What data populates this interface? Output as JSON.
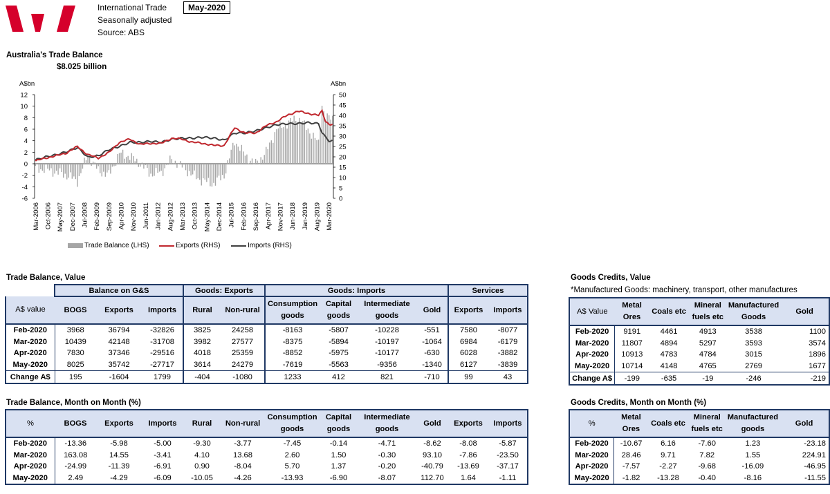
{
  "header": {
    "line1": "International Trade",
    "line2": "Seasonally adjusted",
    "line3": "Source: ABS",
    "period": "May-2020"
  },
  "chart_title": "Australia's Trade Balance",
  "chart_subtitle": "$8.025 billion",
  "chart_data": {
    "type": "bar+line",
    "left_axis": {
      "label": "A$bn",
      "min": -6,
      "max": 12,
      "ticks": [
        -6,
        -4,
        -2,
        0,
        2,
        4,
        6,
        8,
        10,
        12
      ]
    },
    "right_axis": {
      "label": "A$bn",
      "min": 0,
      "max": 50,
      "ticks": [
        0,
        5,
        10,
        15,
        20,
        25,
        30,
        35,
        40,
        45,
        50
      ]
    },
    "x_tick_labels": [
      "Mar-2006",
      "Oct-2006",
      "May-2007",
      "Dec-2007",
      "Jul-2008",
      "Feb-2009",
      "Sep-2009",
      "Apr-2010",
      "Nov-2010",
      "Jun-2011",
      "Jan-2012",
      "Aug-2012",
      "Mar-2013",
      "Oct-2013",
      "May-2014",
      "Dec-2014",
      "Jul-2015",
      "Feb-2016",
      "Sep-2016",
      "Apr-2017",
      "Nov-2017",
      "Jun-2018",
      "Jan-2019",
      "Aug-2019",
      "Mar-2020"
    ],
    "legend": [
      "Trade Balance (LHS)",
      "Exports (RHS)",
      "Imports (RHS)"
    ],
    "series_colors": {
      "balance": "#a6a6a6",
      "exports": "#c0272d",
      "imports": "#3f3f3f"
    },
    "anchors": {
      "months": [
        0,
        6,
        12,
        18,
        24,
        30,
        36,
        42,
        48,
        54,
        60,
        66,
        72,
        78,
        84,
        90,
        96,
        102,
        108,
        114,
        120,
        126,
        132,
        138,
        144,
        150,
        156,
        162,
        164,
        166,
        168
      ],
      "balance": [
        -0.8,
        -1.0,
        -1.5,
        -2.0,
        -3.0,
        1.5,
        -1.2,
        -2.0,
        1.8,
        1.3,
        0.0,
        -1.8,
        -1.5,
        0.8,
        -0.5,
        -2.0,
        -3.0,
        -3.5,
        -2.0,
        4.0,
        1.5,
        0.0,
        2.0,
        6.0,
        7.0,
        8.0,
        6.0,
        3.5,
        10.4,
        7.8,
        8.0
      ],
      "exports": [
        18.0,
        19.5,
        20.5,
        22.0,
        25.0,
        21.0,
        19.5,
        22.0,
        27.0,
        28.5,
        26.0,
        26.5,
        26.5,
        29.0,
        28.5,
        27.0,
        26.5,
        25.5,
        25.5,
        34.0,
        31.5,
        31.5,
        35.0,
        37.0,
        40.0,
        42.0,
        41.0,
        40.0,
        42.1,
        37.3,
        35.7
      ],
      "imports": [
        18.5,
        20.0,
        21.0,
        22.5,
        24.5,
        19.8,
        20.5,
        23.5,
        25.0,
        27.0,
        27.0,
        27.5,
        27.0,
        28.5,
        29.0,
        29.0,
        29.5,
        29.0,
        28.0,
        31.5,
        31.5,
        32.5,
        34.0,
        35.5,
        36.0,
        36.0,
        36.5,
        36.0,
        31.7,
        29.5,
        27.7
      ]
    }
  },
  "trade_value": {
    "title": "Trade Balance, Value",
    "groups": [
      "Balance on G&S",
      "Goods: Exports",
      "Goods: Imports",
      "Services"
    ],
    "headers": [
      {
        "l1": "A$ value",
        "l2": ""
      },
      {
        "l1": "BOGS",
        "l2": ""
      },
      {
        "l1": "Exports",
        "l2": ""
      },
      {
        "l1": "Imports",
        "l2": ""
      },
      {
        "l1": "Rural",
        "l2": ""
      },
      {
        "l1": "Non-rural",
        "l2": ""
      },
      {
        "l1": "Consumption",
        "l2": "goods"
      },
      {
        "l1": "Capital",
        "l2": "goods"
      },
      {
        "l1": "Intermediate",
        "l2": "goods"
      },
      {
        "l1": "Gold",
        "l2": ""
      },
      {
        "l1": "Exports",
        "l2": ""
      },
      {
        "l1": "Imports",
        "l2": ""
      }
    ],
    "rows": [
      [
        "Feb-2020",
        "3968",
        "36794",
        "-32826",
        "3825",
        "24258",
        "-8163",
        "-5807",
        "-10228",
        "-551",
        "7580",
        "-8077"
      ],
      [
        "Mar-2020",
        "10439",
        "42148",
        "-31708",
        "3982",
        "27577",
        "-8375",
        "-5894",
        "-10197",
        "-1064",
        "6984",
        "-6179"
      ],
      [
        "Apr-2020",
        "7830",
        "37346",
        "-29516",
        "4018",
        "25359",
        "-8852",
        "-5975",
        "-10177",
        "-630",
        "6028",
        "-3882"
      ],
      [
        "May-2020",
        "8025",
        "35742",
        "-27717",
        "3614",
        "24279",
        "-7619",
        "-5563",
        "-9356",
        "-1340",
        "6127",
        "-3839"
      ],
      [
        "Change A$",
        "195",
        "-1604",
        "1799",
        "-404",
        "-1080",
        "1233",
        "412",
        "821",
        "-710",
        "99",
        "43"
      ]
    ]
  },
  "trade_mom": {
    "title": "Trade Balance, Month on Month (%)",
    "headers": [
      {
        "l1": "%",
        "l2": ""
      },
      {
        "l1": "BOGS",
        "l2": ""
      },
      {
        "l1": "Exports",
        "l2": ""
      },
      {
        "l1": "Imports",
        "l2": ""
      },
      {
        "l1": "Rural",
        "l2": ""
      },
      {
        "l1": "Non-rural",
        "l2": ""
      },
      {
        "l1": "Consumption",
        "l2": "goods"
      },
      {
        "l1": "Capital",
        "l2": "goods"
      },
      {
        "l1": "Intermediate",
        "l2": "goods"
      },
      {
        "l1": "Gold",
        "l2": ""
      },
      {
        "l1": "Exports",
        "l2": ""
      },
      {
        "l1": "Imports",
        "l2": ""
      }
    ],
    "rows": [
      [
        "Feb-2020",
        "-13.36",
        "-5.98",
        "-5.00",
        "-9.30",
        "-3.77",
        "-7.45",
        "-0.14",
        "-4.71",
        "-8.62",
        "-8.08",
        "-5.87"
      ],
      [
        "Mar-2020",
        "163.08",
        "14.55",
        "-3.41",
        "4.10",
        "13.68",
        "2.60",
        "1.50",
        "-0.30",
        "93.10",
        "-7.86",
        "-23.50"
      ],
      [
        "Apr-2020",
        "-24.99",
        "-11.39",
        "-6.91",
        "0.90",
        "-8.04",
        "5.70",
        "1.37",
        "-0.20",
        "-40.79",
        "-13.69",
        "-37.17"
      ],
      [
        "May-2020",
        "2.49",
        "-4.29",
        "-6.09",
        "-10.05",
        "-4.26",
        "-13.93",
        "-6.90",
        "-8.07",
        "112.70",
        "1.64",
        "-1.11"
      ]
    ]
  },
  "goods_value": {
    "title": "Goods Credits, Value",
    "note": "*Manufactured Goods: machinery, transport, other manufactures",
    "headers": [
      {
        "l1": "A$ Value",
        "l2": ""
      },
      {
        "l1": "Metal",
        "l2": "Ores"
      },
      {
        "l1": "Coals etc",
        "l2": ""
      },
      {
        "l1": "Mineral",
        "l2": "fuels etc"
      },
      {
        "l1": "Manufactured",
        "l2": "Goods"
      },
      {
        "l1": "Gold",
        "l2": ""
      }
    ],
    "rows": [
      [
        "Feb-2020",
        "9191",
        "4461",
        "4913",
        "3538",
        "1100"
      ],
      [
        "Mar-2020",
        "11807",
        "4894",
        "5297",
        "3593",
        "3574"
      ],
      [
        "Apr-2020",
        "10913",
        "4783",
        "4784",
        "3015",
        "1896"
      ],
      [
        "May-2020",
        "10714",
        "4148",
        "4765",
        "2769",
        "1677"
      ],
      [
        "Change A$",
        "-199",
        "-635",
        "-19",
        "-246",
        "-219"
      ]
    ]
  },
  "goods_mom": {
    "title": "Goods Credits, Month on Month (%)",
    "headers": [
      {
        "l1": "%",
        "l2": ""
      },
      {
        "l1": "Metal",
        "l2": "Ores"
      },
      {
        "l1": "Coals etc",
        "l2": ""
      },
      {
        "l1": "Mineral",
        "l2": "fuels etc"
      },
      {
        "l1": "Manufactured",
        "l2": "goods"
      },
      {
        "l1": "Gold",
        "l2": ""
      }
    ],
    "rows": [
      [
        "Feb-2020",
        "-10.67",
        "6.16",
        "-7.60",
        "1.23",
        "-23.18"
      ],
      [
        "Mar-2020",
        "28.46",
        "9.71",
        "7.82",
        "1.55",
        "224.91"
      ],
      [
        "Apr-2020",
        "-7.57",
        "-2.27",
        "-9.68",
        "-16.09",
        "-46.95"
      ],
      [
        "May-2020",
        "-1.82",
        "-13.28",
        "-0.40",
        "-8.16",
        "-11.55"
      ]
    ]
  }
}
